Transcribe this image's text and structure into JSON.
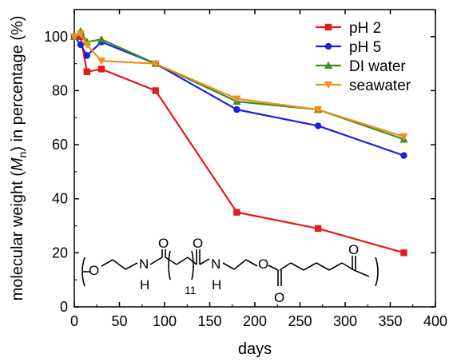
{
  "chart_data": {
    "type": "line",
    "xlabel": "days",
    "ylabel_parts": {
      "before": "molecular weight (",
      "symbol": "M",
      "subscript": "n",
      "after": ") in percentage (%)"
    },
    "xlim": [
      0,
      400
    ],
    "ylim": [
      0,
      110
    ],
    "x_ticks": [
      "0",
      "50",
      "100",
      "150",
      "200",
      "250",
      "300",
      "350",
      "400"
    ],
    "y_ticks": [
      "0",
      "20",
      "40",
      "60",
      "80",
      "100"
    ],
    "grid": false,
    "legend_position": "top-right",
    "series": [
      {
        "name": "pH 2",
        "color": "#e41a1c",
        "marker": "square",
        "x": [
          0,
          7,
          14,
          30,
          90,
          180,
          270,
          365
        ],
        "y": [
          100,
          100,
          87,
          88,
          80,
          35,
          29,
          20
        ]
      },
      {
        "name": "pH 5",
        "color": "#1f1fe0",
        "marker": "circle",
        "x": [
          0,
          7,
          14,
          30,
          90,
          180,
          270,
          365
        ],
        "y": [
          100,
          97,
          93,
          98,
          90,
          73,
          67,
          56
        ]
      },
      {
        "name": "DI water",
        "color": "#3f8f1f",
        "marker": "triangle-up",
        "x": [
          0,
          7,
          14,
          30,
          90,
          180,
          270,
          365
        ],
        "y": [
          100,
          102,
          98,
          99,
          90,
          76,
          73,
          62
        ]
      },
      {
        "name": "seawater",
        "color": "#f0901f",
        "marker": "triangle-down",
        "x": [
          0,
          7,
          14,
          30,
          90,
          180,
          270,
          365
        ],
        "y": [
          100,
          101,
          97,
          91,
          90,
          77,
          73,
          63
        ]
      }
    ],
    "structure_labels": {
      "O": "O",
      "N": "N",
      "H": "H",
      "repeat": "11"
    }
  }
}
